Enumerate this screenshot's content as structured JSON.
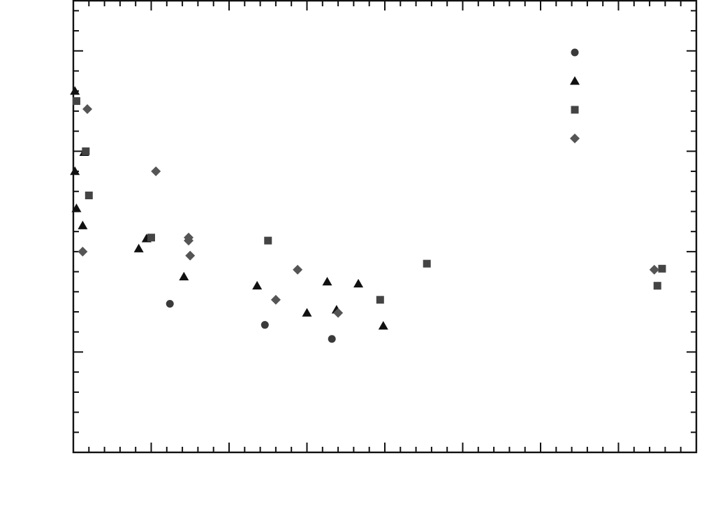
{
  "chart_data": {
    "type": "scatter",
    "title": "",
    "xlabel": "",
    "ylabel": "",
    "xlim": [
      0,
      40
    ],
    "ylim": [
      0,
      45
    ],
    "grid": false,
    "legend": "top-right",
    "series": [
      {
        "marker": "circle",
        "color": "#3a3a3a",
        "points": [
          [
            6.2,
            14.8
          ],
          [
            12.3,
            12.7
          ],
          [
            16.6,
            11.3
          ]
        ]
      },
      {
        "marker": "triangle",
        "color": "#111111",
        "points": [
          [
            0.1,
            36.0
          ],
          [
            0.1,
            28.0
          ],
          [
            0.2,
            24.3
          ],
          [
            0.7,
            29.9
          ],
          [
            0.6,
            22.6
          ],
          [
            4.2,
            20.3
          ],
          [
            4.7,
            21.3
          ],
          [
            7.1,
            17.5
          ],
          [
            11.8,
            16.6
          ],
          [
            15.0,
            13.9
          ],
          [
            16.3,
            17.0
          ],
          [
            16.9,
            14.2
          ],
          [
            18.3,
            16.8
          ],
          [
            19.9,
            12.6
          ]
        ]
      },
      {
        "marker": "square",
        "color": "#444444",
        "points": [
          [
            0.2,
            35.0
          ],
          [
            0.8,
            30.0
          ],
          [
            1.0,
            25.6
          ],
          [
            5.0,
            21.4
          ],
          [
            12.5,
            21.1
          ],
          [
            19.7,
            15.2
          ],
          [
            22.7,
            18.8
          ],
          [
            37.5,
            16.6
          ],
          [
            37.8,
            18.3
          ]
        ]
      },
      {
        "marker": "diamond",
        "color": "#555555",
        "points": [
          [
            0.9,
            34.2
          ],
          [
            0.6,
            20.0
          ],
          [
            5.3,
            28.0
          ],
          [
            7.4,
            21.4
          ],
          [
            7.4,
            21.1
          ],
          [
            7.5,
            19.6
          ],
          [
            13.0,
            15.2
          ],
          [
            14.4,
            18.2
          ],
          [
            17.0,
            13.9
          ],
          [
            37.3,
            18.2
          ]
        ]
      }
    ]
  }
}
